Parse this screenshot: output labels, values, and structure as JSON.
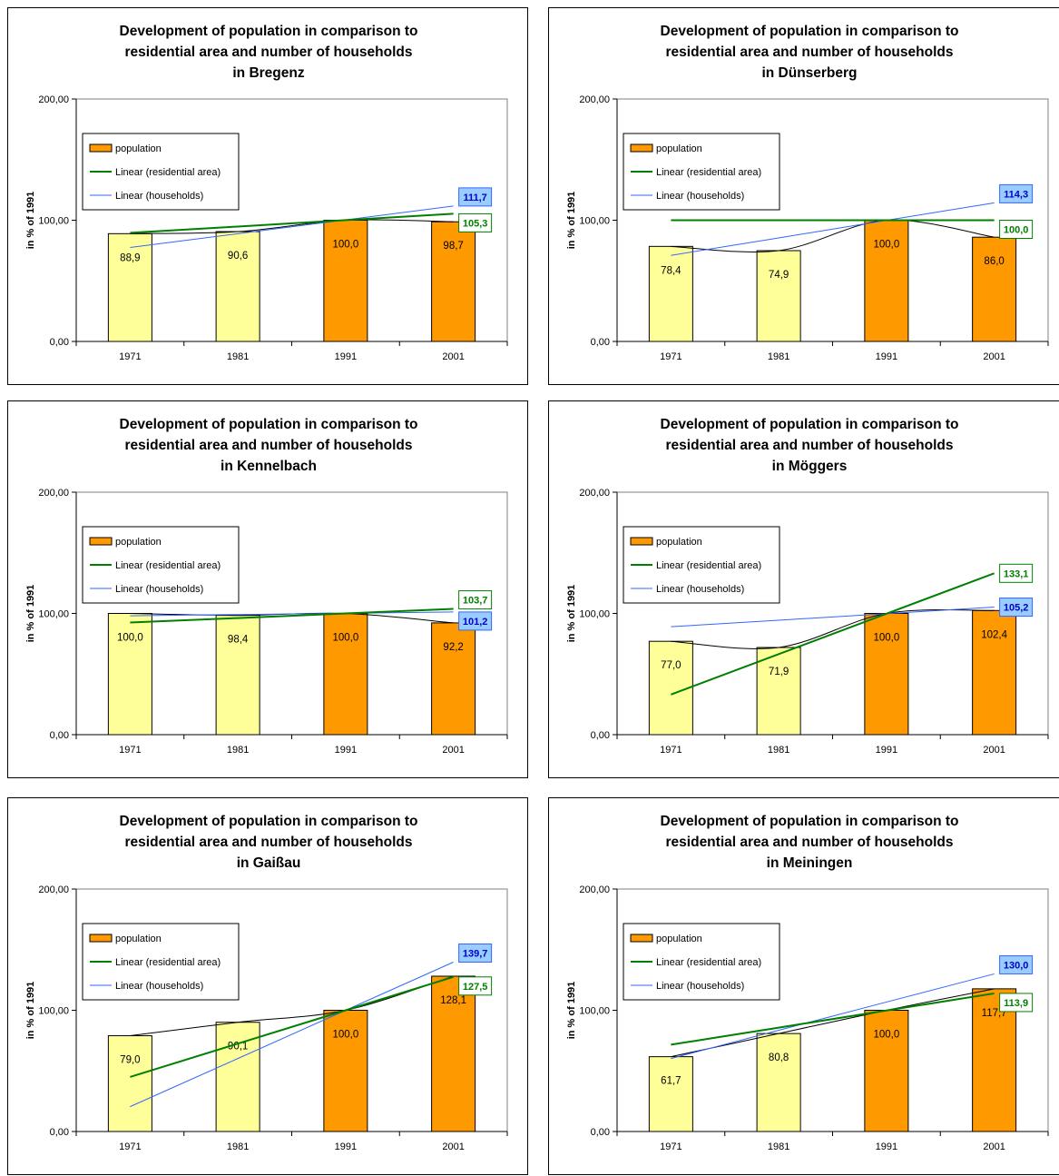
{
  "legend": {
    "population": "population",
    "residential": "Linear (residential area)",
    "households": "Linear (households)"
  },
  "colors": {
    "bar_light": "#ffff99",
    "bar_orange": "#ff9900",
    "residential_line": "#008000",
    "households_line": "#3366ff",
    "households_box": "#99ccff",
    "smooth_line": "#000000"
  },
  "chart_data": [
    {
      "type": "bar",
      "title": "Development of population in comparison to residential area and number of households in Bregenz",
      "title_lines": [
        "Development of population in comparison to",
        "residential area and number of households",
        "in Bregenz"
      ],
      "ylabel": "in % of 1991",
      "ylim": [
        0,
        200
      ],
      "yticks": [
        "0,00",
        "100,00",
        "200,00"
      ],
      "categories": [
        "1971",
        "1981",
        "1991",
        "2001"
      ],
      "series": [
        {
          "name": "population",
          "values": [
            88.9,
            90.6,
            100.0,
            98.7
          ],
          "labels": [
            "88,9",
            "90,6",
            "100,0",
            "98,7"
          ]
        }
      ],
      "trend_residential": {
        "values": [
          89.6,
          94.8,
          100.1,
          105.3
        ],
        "end_label": "105,3"
      },
      "trend_households": {
        "values": [
          77.5,
          88.9,
          100.3,
          111.7
        ],
        "end_label": "111,7"
      },
      "legend_position": "top-left"
    },
    {
      "type": "bar",
      "title": "Development of population in comparison to residential area and number of households in Dünserberg",
      "title_lines": [
        "Development of population in comparison to",
        "residential area and number of households",
        "in Dünserberg"
      ],
      "ylabel": "in % of 1991",
      "ylim": [
        0,
        200
      ],
      "yticks": [
        "0,00",
        "100,00",
        "200,00"
      ],
      "categories": [
        "1971",
        "1981",
        "1991",
        "2001"
      ],
      "series": [
        {
          "name": "population",
          "values": [
            78.4,
            74.9,
            100.0,
            86.0
          ],
          "labels": [
            "78,4",
            "74,9",
            "100,0",
            "86,0"
          ]
        }
      ],
      "trend_residential": {
        "values": [
          100.0,
          100.0,
          100.0,
          100.0
        ],
        "end_label": "100,0"
      },
      "trend_households": {
        "values": [
          71.0,
          85.4,
          99.9,
          114.3
        ],
        "end_label": "114,3"
      },
      "legend_position": "top-left"
    },
    {
      "type": "bar",
      "title": "Development of population in comparison to residential area and number of households in Kennelbach",
      "title_lines": [
        "Development of population in comparison to",
        "residential area and number of households",
        "in Kennelbach"
      ],
      "ylabel": "in % of 1991",
      "ylim": [
        0,
        200
      ],
      "yticks": [
        "0,00",
        "100,00",
        "200,00"
      ],
      "categories": [
        "1971",
        "1981",
        "1991",
        "2001"
      ],
      "series": [
        {
          "name": "population",
          "values": [
            100.0,
            98.4,
            100.0,
            92.2
          ],
          "labels": [
            "100,0",
            "98,4",
            "100,0",
            "92,2"
          ]
        }
      ],
      "trend_residential": {
        "values": [
          92.5,
          96.2,
          100.0,
          103.7
        ],
        "end_label": "103,7"
      },
      "trend_households": {
        "values": [
          98.0,
          99.1,
          100.1,
          101.2
        ],
        "end_label": "101,2"
      },
      "legend_position": "top-left"
    },
    {
      "type": "bar",
      "title": "Development of population in comparison to residential area and number of households in Möggers",
      "title_lines": [
        "Development of population in comparison to",
        "residential area and number of households",
        "in Möggers"
      ],
      "ylabel": "in % of 1991",
      "ylim": [
        0,
        200
      ],
      "yticks": [
        "0,00",
        "100,00",
        "200,00"
      ],
      "categories": [
        "1971",
        "1981",
        "1991",
        "2001"
      ],
      "series": [
        {
          "name": "population",
          "values": [
            77.0,
            71.9,
            100.0,
            102.4
          ],
          "labels": [
            "77,0",
            "71,9",
            "100,0",
            "102,4"
          ]
        }
      ],
      "trend_residential": {
        "values": [
          33.1,
          66.4,
          99.8,
          133.1
        ],
        "end_label": "133,1"
      },
      "trend_households": {
        "values": [
          89.0,
          94.4,
          99.8,
          105.2
        ],
        "end_label": "105,2"
      },
      "legend_position": "top-left"
    },
    {
      "type": "bar",
      "title": "Development of population in comparison to residential area and number of households in Gaißau",
      "title_lines": [
        "Development of population in comparison to",
        "residential area and number of households",
        "in Gaißau"
      ],
      "ylabel": "in % of 1991",
      "ylim": [
        0,
        200
      ],
      "yticks": [
        "0,00",
        "100,00",
        "200,00"
      ],
      "categories": [
        "1971",
        "1981",
        "1991",
        "2001"
      ],
      "series": [
        {
          "name": "population",
          "values": [
            79.0,
            90.1,
            100.0,
            128.1
          ],
          "labels": [
            "79,0",
            "90,1",
            "100,0",
            "128,1"
          ]
        }
      ],
      "trend_residential": {
        "values": [
          45.0,
          72.5,
          100.0,
          127.5
        ],
        "end_label": "127,5"
      },
      "trend_households": {
        "values": [
          20.5,
          60.2,
          100.0,
          139.7
        ],
        "end_label": "139,7"
      },
      "legend_position": "top-left"
    },
    {
      "type": "bar",
      "title": "Development of population in comparison to residential area and number of households in Meiningen",
      "title_lines": [
        "Development of population in comparison to",
        "residential area and number of households",
        "in Meiningen"
      ],
      "ylabel": "in % of 1991",
      "ylim": [
        0,
        200
      ],
      "yticks": [
        "0,00",
        "100,00",
        "200,00"
      ],
      "categories": [
        "1971",
        "1981",
        "1991",
        "2001"
      ],
      "series": [
        {
          "name": "population",
          "values": [
            61.7,
            80.8,
            100.0,
            117.7
          ],
          "labels": [
            "61,7",
            "80,8",
            "100,0",
            "117,7"
          ]
        }
      ],
      "trend_residential": {
        "values": [
          71.6,
          85.7,
          99.8,
          113.9
        ],
        "end_label": "113,9"
      },
      "trend_households": {
        "values": [
          60.2,
          83.5,
          106.8,
          130.0
        ],
        "end_label": "130,0"
      },
      "legend_position": "top-left"
    }
  ]
}
